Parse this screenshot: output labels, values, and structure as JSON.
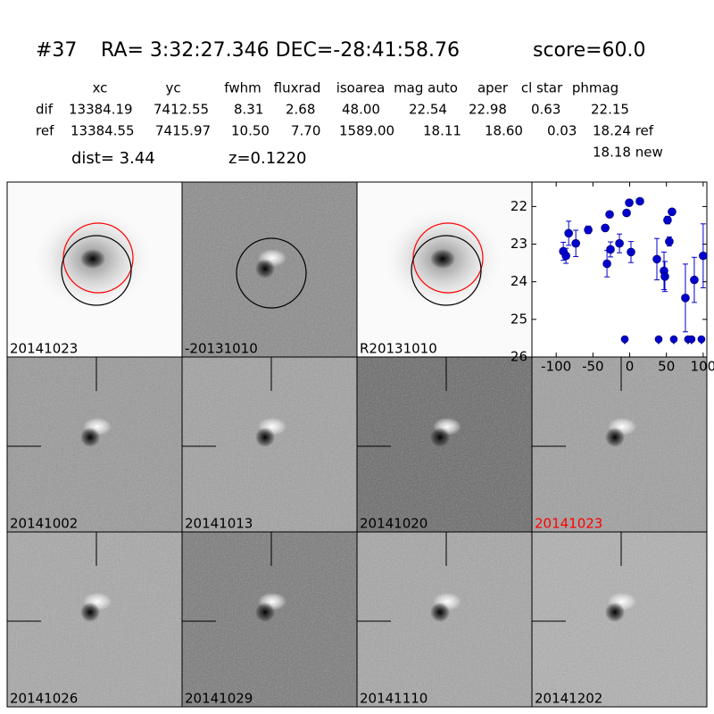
{
  "header": {
    "id": "#37",
    "coords": "RA= 3:32:27.346 DEC=-28:41:58.76",
    "score": "score=60.0"
  },
  "table": {
    "columns": [
      "xc",
      "yc",
      "fwhm",
      "fluxrad",
      "isoarea",
      "mag auto",
      "aper",
      "cl star",
      "phmag"
    ],
    "rows": [
      [
        "dif",
        "13384.19",
        "7412.55",
        "8.31",
        "2.68",
        "48.00",
        "22.54",
        "22.98",
        "0.63",
        "22.15"
      ],
      [
        "ref",
        "13384.55",
        "7415.97",
        "10.50",
        "7.70",
        "1589.00",
        "18.11",
        "18.60",
        "0.03",
        "18.24 ref"
      ]
    ],
    "extra": "18.18 new"
  },
  "info": {
    "dist": "dist=  3.44",
    "z": "z=0.1220"
  },
  "panels": [
    {
      "label": "20141023"
    },
    {
      "label": "-20131010"
    },
    {
      "label": "R20131010"
    },
    {
      "label": "20141002"
    },
    {
      "label": "20141013"
    },
    {
      "label": "20141020"
    },
    {
      "label": "20141023",
      "color": "#ff0000"
    },
    {
      "label": "20141026"
    },
    {
      "label": "20141029"
    },
    {
      "label": "20141110"
    },
    {
      "label": "20141202"
    }
  ],
  "chart_data": {
    "type": "errorbar",
    "xlim": [
      -133,
      105
    ],
    "ylim": [
      26,
      21.35
    ],
    "xticks": [
      -100,
      -50,
      0,
      50,
      100
    ],
    "yticks": [
      22,
      23,
      24,
      25,
      26
    ],
    "series": [
      {
        "color": "#0000cc",
        "x": [
          -90.3,
          -86.7,
          -83,
          -73.3,
          -56.4,
          -33.3,
          -30.9,
          -27.3,
          -26.1,
          -13.9,
          -4.2,
          -0.6,
          1.8,
          13.9,
          37,
          46.7,
          47.9,
          51.5,
          53.9,
          57.6,
          75.8,
          87.9,
          100
        ],
        "values": [
          23.19,
          23.31,
          22.71,
          22.98,
          22.62,
          22.57,
          23.52,
          22.21,
          23.14,
          22.98,
          22.17,
          21.9,
          23.21,
          21.86,
          23.4,
          23.71,
          23.86,
          22.36,
          22.93,
          22.14,
          24.43,
          23.95,
          23.31
        ],
        "errors": [
          0.24,
          0.2,
          0.32,
          0.35,
          0.1,
          0.08,
          0.35,
          0.08,
          0.2,
          0.25,
          0.07,
          0.05,
          0.28,
          0.05,
          0.55,
          0.5,
          0.4,
          0.1,
          0.12,
          0.07,
          0.9,
          0.6,
          0.85
        ]
      },
      {
        "color": "#0000cc",
        "upper_limit": true,
        "x": [
          -6.7,
          39.4,
          60,
          79.4,
          84.2,
          97.6
        ],
        "values": [
          25.55,
          25.55,
          25.55,
          25.55,
          25.55,
          25.55
        ]
      }
    ]
  }
}
